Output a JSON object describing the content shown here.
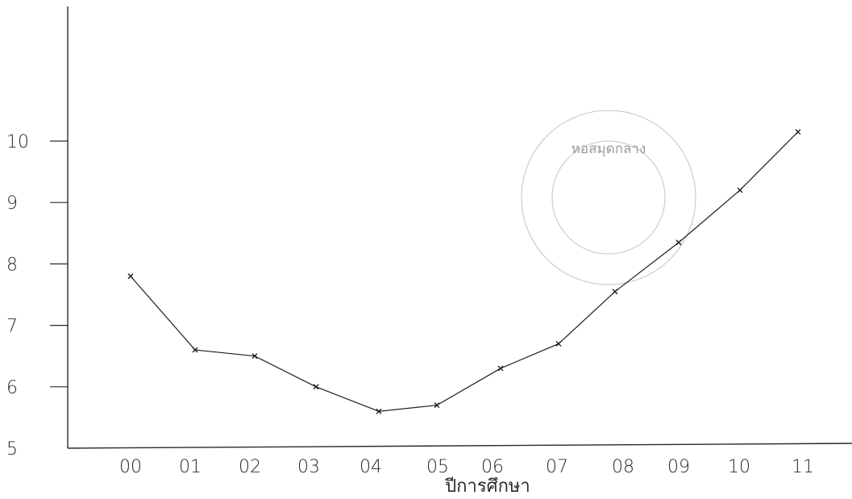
{
  "chart_data": {
    "type": "line",
    "categories": [
      "00",
      "01",
      "02",
      "03",
      "04",
      "05",
      "06",
      "07",
      "08",
      "09",
      "10",
      "11"
    ],
    "series": [
      {
        "values": [
          7.8,
          6.6,
          6.5,
          6.0,
          5.6,
          5.7,
          6.3,
          6.7,
          7.55,
          8.35,
          9.2,
          10.15
        ]
      }
    ],
    "y_ticks": [
      "5",
      "6",
      "7",
      "8",
      "9",
      "10"
    ],
    "ylim": [
      5,
      10.5
    ],
    "xlabel": "ปีการศึกษา",
    "ylabel": "",
    "title": "",
    "grid": false,
    "marker": "x",
    "stamp_text": "หอสมุดกลาง",
    "colors": {
      "line": "#1f1f1f",
      "axis": "#2a2a2a",
      "stamp": "#c8c8c8"
    }
  }
}
